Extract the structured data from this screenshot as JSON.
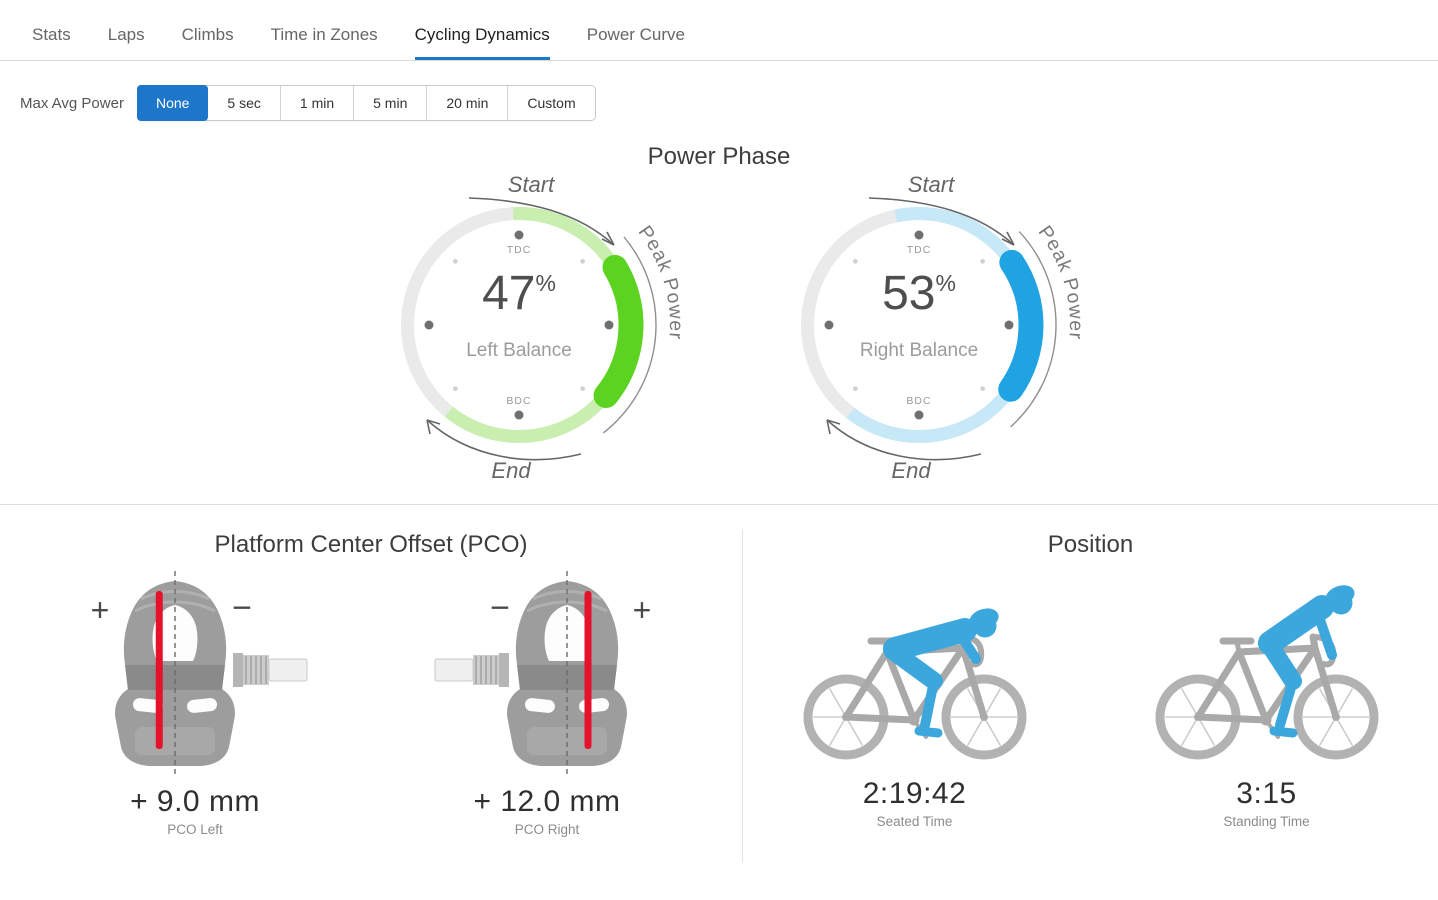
{
  "tabs": {
    "items": [
      {
        "label": "Stats",
        "active": false
      },
      {
        "label": "Laps",
        "active": false
      },
      {
        "label": "Climbs",
        "active": false
      },
      {
        "label": "Time in Zones",
        "active": false
      },
      {
        "label": "Cycling Dynamics",
        "active": true
      },
      {
        "label": "Power Curve",
        "active": false
      }
    ]
  },
  "controls": {
    "label": "Max Avg Power",
    "options": [
      "None",
      "5 sec",
      "1 min",
      "5 min",
      "20 min",
      "Custom"
    ],
    "selected": "None"
  },
  "power_phase": {
    "title": "Power Phase",
    "gauges": [
      {
        "side": "left",
        "value": "47",
        "unit": "%",
        "balance_label": "Left Balance",
        "tdc_label": "TDC",
        "bdc_label": "BDC",
        "start_label": "Start",
        "end_label": "End",
        "peak_label": "Peak Power",
        "arc_start_deg": -3,
        "arc_end_deg": 219,
        "peak_start_deg": 55,
        "peak_end_deg": 133,
        "arc_color": "#c9efb0",
        "peak_color": "#5dd321"
      },
      {
        "side": "right",
        "value": "53",
        "unit": "%",
        "balance_label": "Right Balance",
        "tdc_label": "TDC",
        "bdc_label": "BDC",
        "start_label": "Start",
        "end_label": "End",
        "peak_label": "Peak Power",
        "arc_start_deg": -12,
        "arc_end_deg": 218,
        "peak_start_deg": 52,
        "peak_end_deg": 129,
        "arc_color": "#c6e8f7",
        "peak_color": "#1fa3e2"
      }
    ]
  },
  "pco": {
    "title": "Platform Center Offset (PCO)",
    "plus_sign": "+",
    "minus_sign": "−",
    "pedals": [
      {
        "value": "+ 9.0 mm",
        "label": "PCO Left",
        "offset_mm": 9.0,
        "direction": "left"
      },
      {
        "value": "+ 12.0 mm",
        "label": "PCO Right",
        "offset_mm": 12.0,
        "direction": "right"
      }
    ]
  },
  "position": {
    "title": "Position",
    "entries": [
      {
        "value": "2:19:42",
        "label": "Seated Time",
        "pose": "seated"
      },
      {
        "value": "3:15",
        "label": "Standing Time",
        "pose": "standing"
      }
    ]
  },
  "colors": {
    "accent_blue": "#1d76c9",
    "tab_underline": "#1d78c9",
    "ring_gray": "#eaeaea",
    "left_arc": "#c9efb0",
    "left_peak": "#5dd321",
    "right_arc": "#c6e8f7",
    "right_peak": "#1fa3e2",
    "rider_blue": "#3ba7dd",
    "bike_gray": "#b2b2b2",
    "pco_red": "#e6112b"
  }
}
